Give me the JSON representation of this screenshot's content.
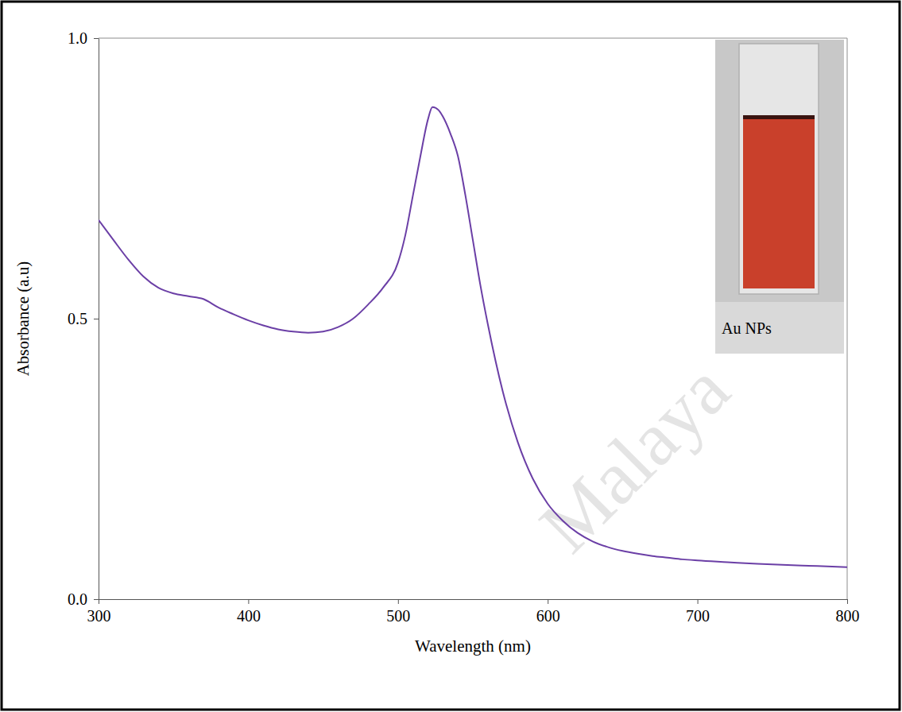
{
  "chart_data": {
    "type": "line",
    "xlabel": "Wavelength (nm)",
    "ylabel": "Absorbance (a.u)",
    "annotations": [
      "Au NPs",
      "Malaya"
    ],
    "color": "#6b3fa6",
    "xlim": [
      300,
      800
    ],
    "ylim": [
      0,
      1
    ],
    "xticks": [
      300,
      400,
      500,
      600,
      700,
      800
    ],
    "yticks": [
      {
        "value": 0,
        "label": "0.0"
      },
      {
        "value": 0.5,
        "label": "0.5"
      },
      {
        "value": 1,
        "label": "1.0"
      }
    ],
    "x": [
      300,
      310,
      320,
      330,
      340,
      350,
      360,
      370,
      380,
      390,
      400,
      410,
      420,
      430,
      440,
      450,
      460,
      470,
      480,
      490,
      500,
      505,
      510,
      515,
      520,
      523,
      527,
      530,
      535,
      540,
      545,
      550,
      555,
      560,
      570,
      580,
      590,
      600,
      610,
      620,
      630,
      640,
      650,
      660,
      670,
      680,
      690,
      700,
      720,
      740,
      760,
      780,
      800
    ],
    "values": [
      0.676,
      0.64,
      0.605,
      0.575,
      0.555,
      0.545,
      0.54,
      0.535,
      0.52,
      0.508,
      0.497,
      0.488,
      0.481,
      0.477,
      0.475,
      0.477,
      0.485,
      0.5,
      0.525,
      0.555,
      0.6,
      0.65,
      0.72,
      0.79,
      0.855,
      0.877,
      0.872,
      0.86,
      0.83,
      0.79,
      0.72,
      0.64,
      0.56,
      0.49,
      0.37,
      0.28,
      0.215,
      0.17,
      0.14,
      0.118,
      0.103,
      0.093,
      0.086,
      0.081,
      0.077,
      0.074,
      0.071,
      0.069,
      0.066,
      0.063,
      0.061,
      0.059,
      0.057
    ]
  }
}
